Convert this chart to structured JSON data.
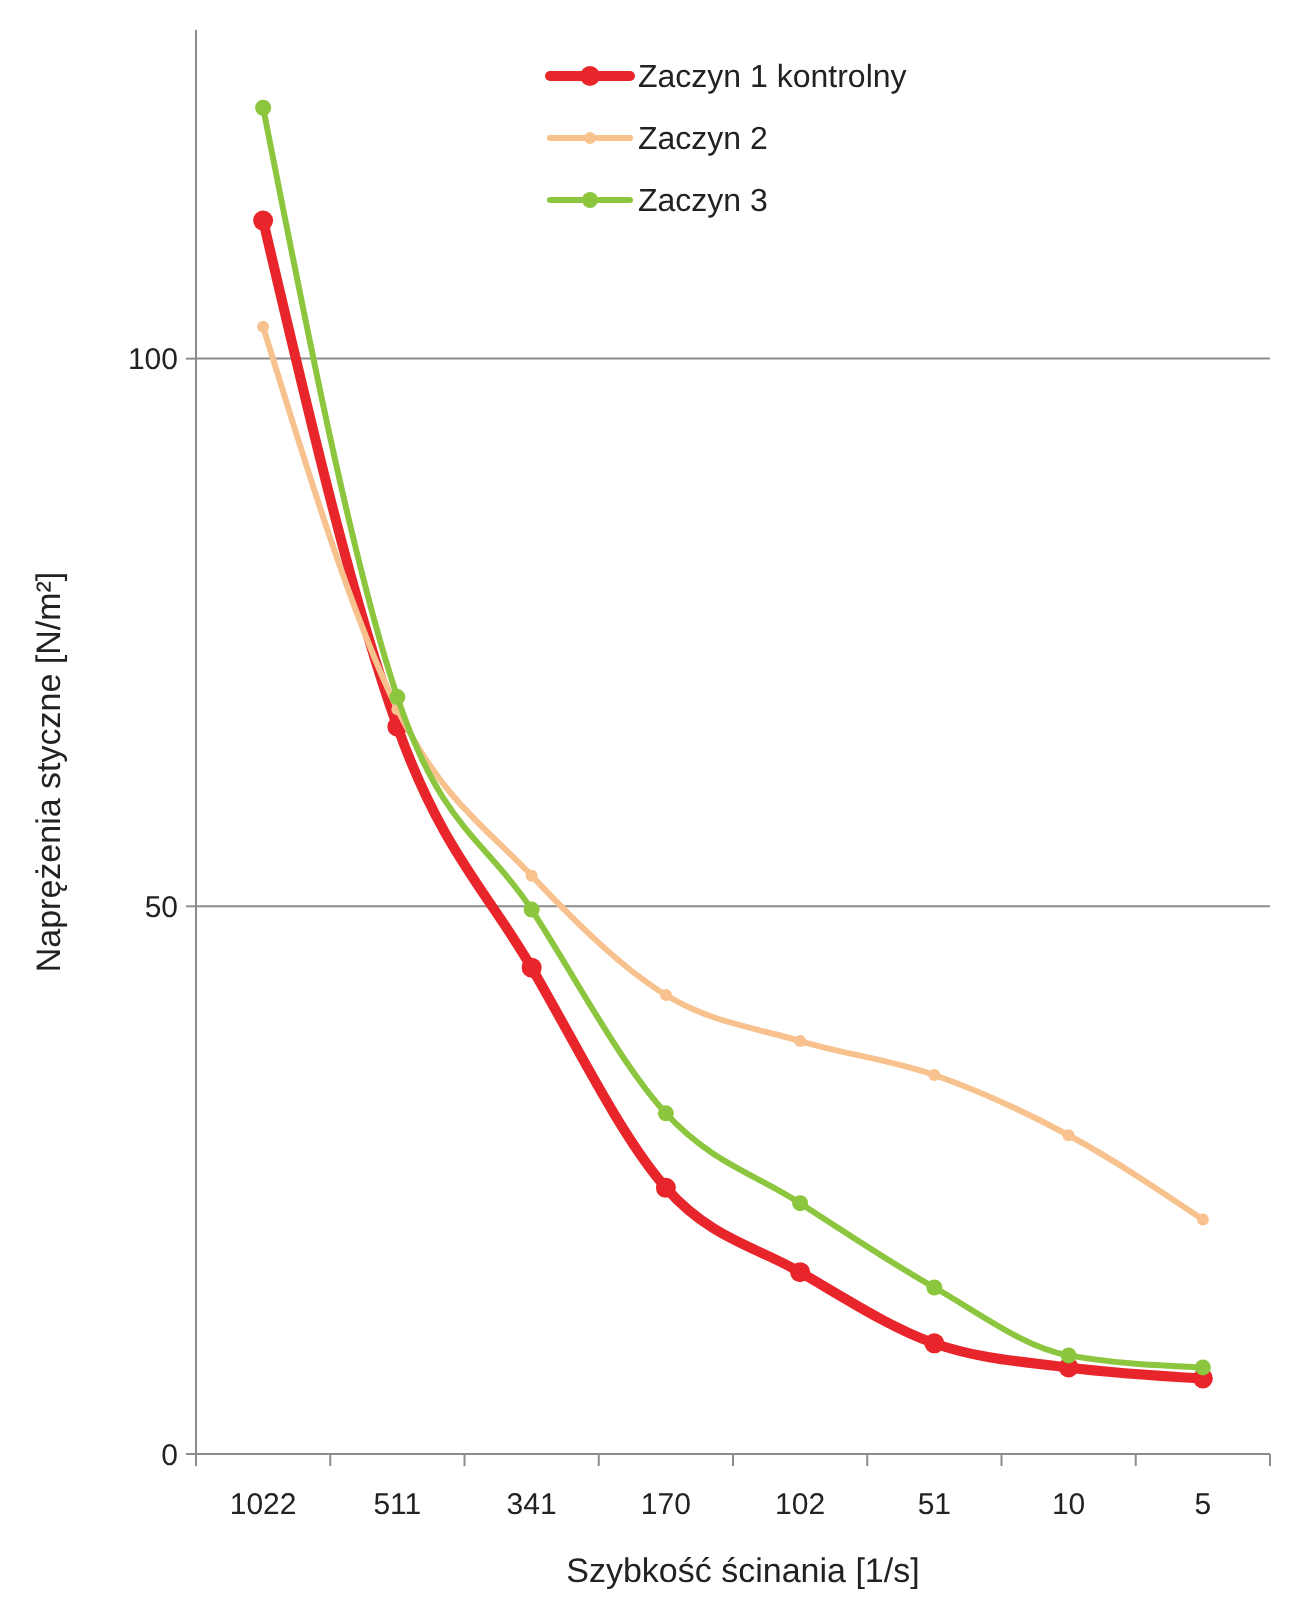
{
  "chart_data": {
    "type": "line",
    "xlabel": "Szybkość ścinania [1/s]",
    "ylabel": "Naprężenia styczne [N/m²]",
    "categories": [
      "1022",
      "511",
      "341",
      "170",
      "102",
      "51",
      "10",
      "5"
    ],
    "ylim": [
      0,
      130
    ],
    "yticks": [
      0,
      50,
      100
    ],
    "grid": "y",
    "legend": "top",
    "marker": "circle",
    "line_style": "solid",
    "series": [
      {
        "name": "Zaczyn 1 kontrolny",
        "color": "#e8252a",
        "values": [
          112.6,
          66.4,
          44.4,
          24.3,
          16.6,
          10.1,
          7.9,
          6.9
        ]
      },
      {
        "name": "Zaczyn 2",
        "color": "#f7c28e",
        "values": [
          102.9,
          68,
          52.8,
          41.9,
          37.7,
          34.6,
          29.1,
          21.4
        ]
      },
      {
        "name": "Zaczyn 3",
        "color": "#8cc63e",
        "values": [
          122.9,
          69.1,
          49.7,
          31.1,
          22.9,
          15.2,
          9.0,
          7.9
        ]
      }
    ]
  }
}
